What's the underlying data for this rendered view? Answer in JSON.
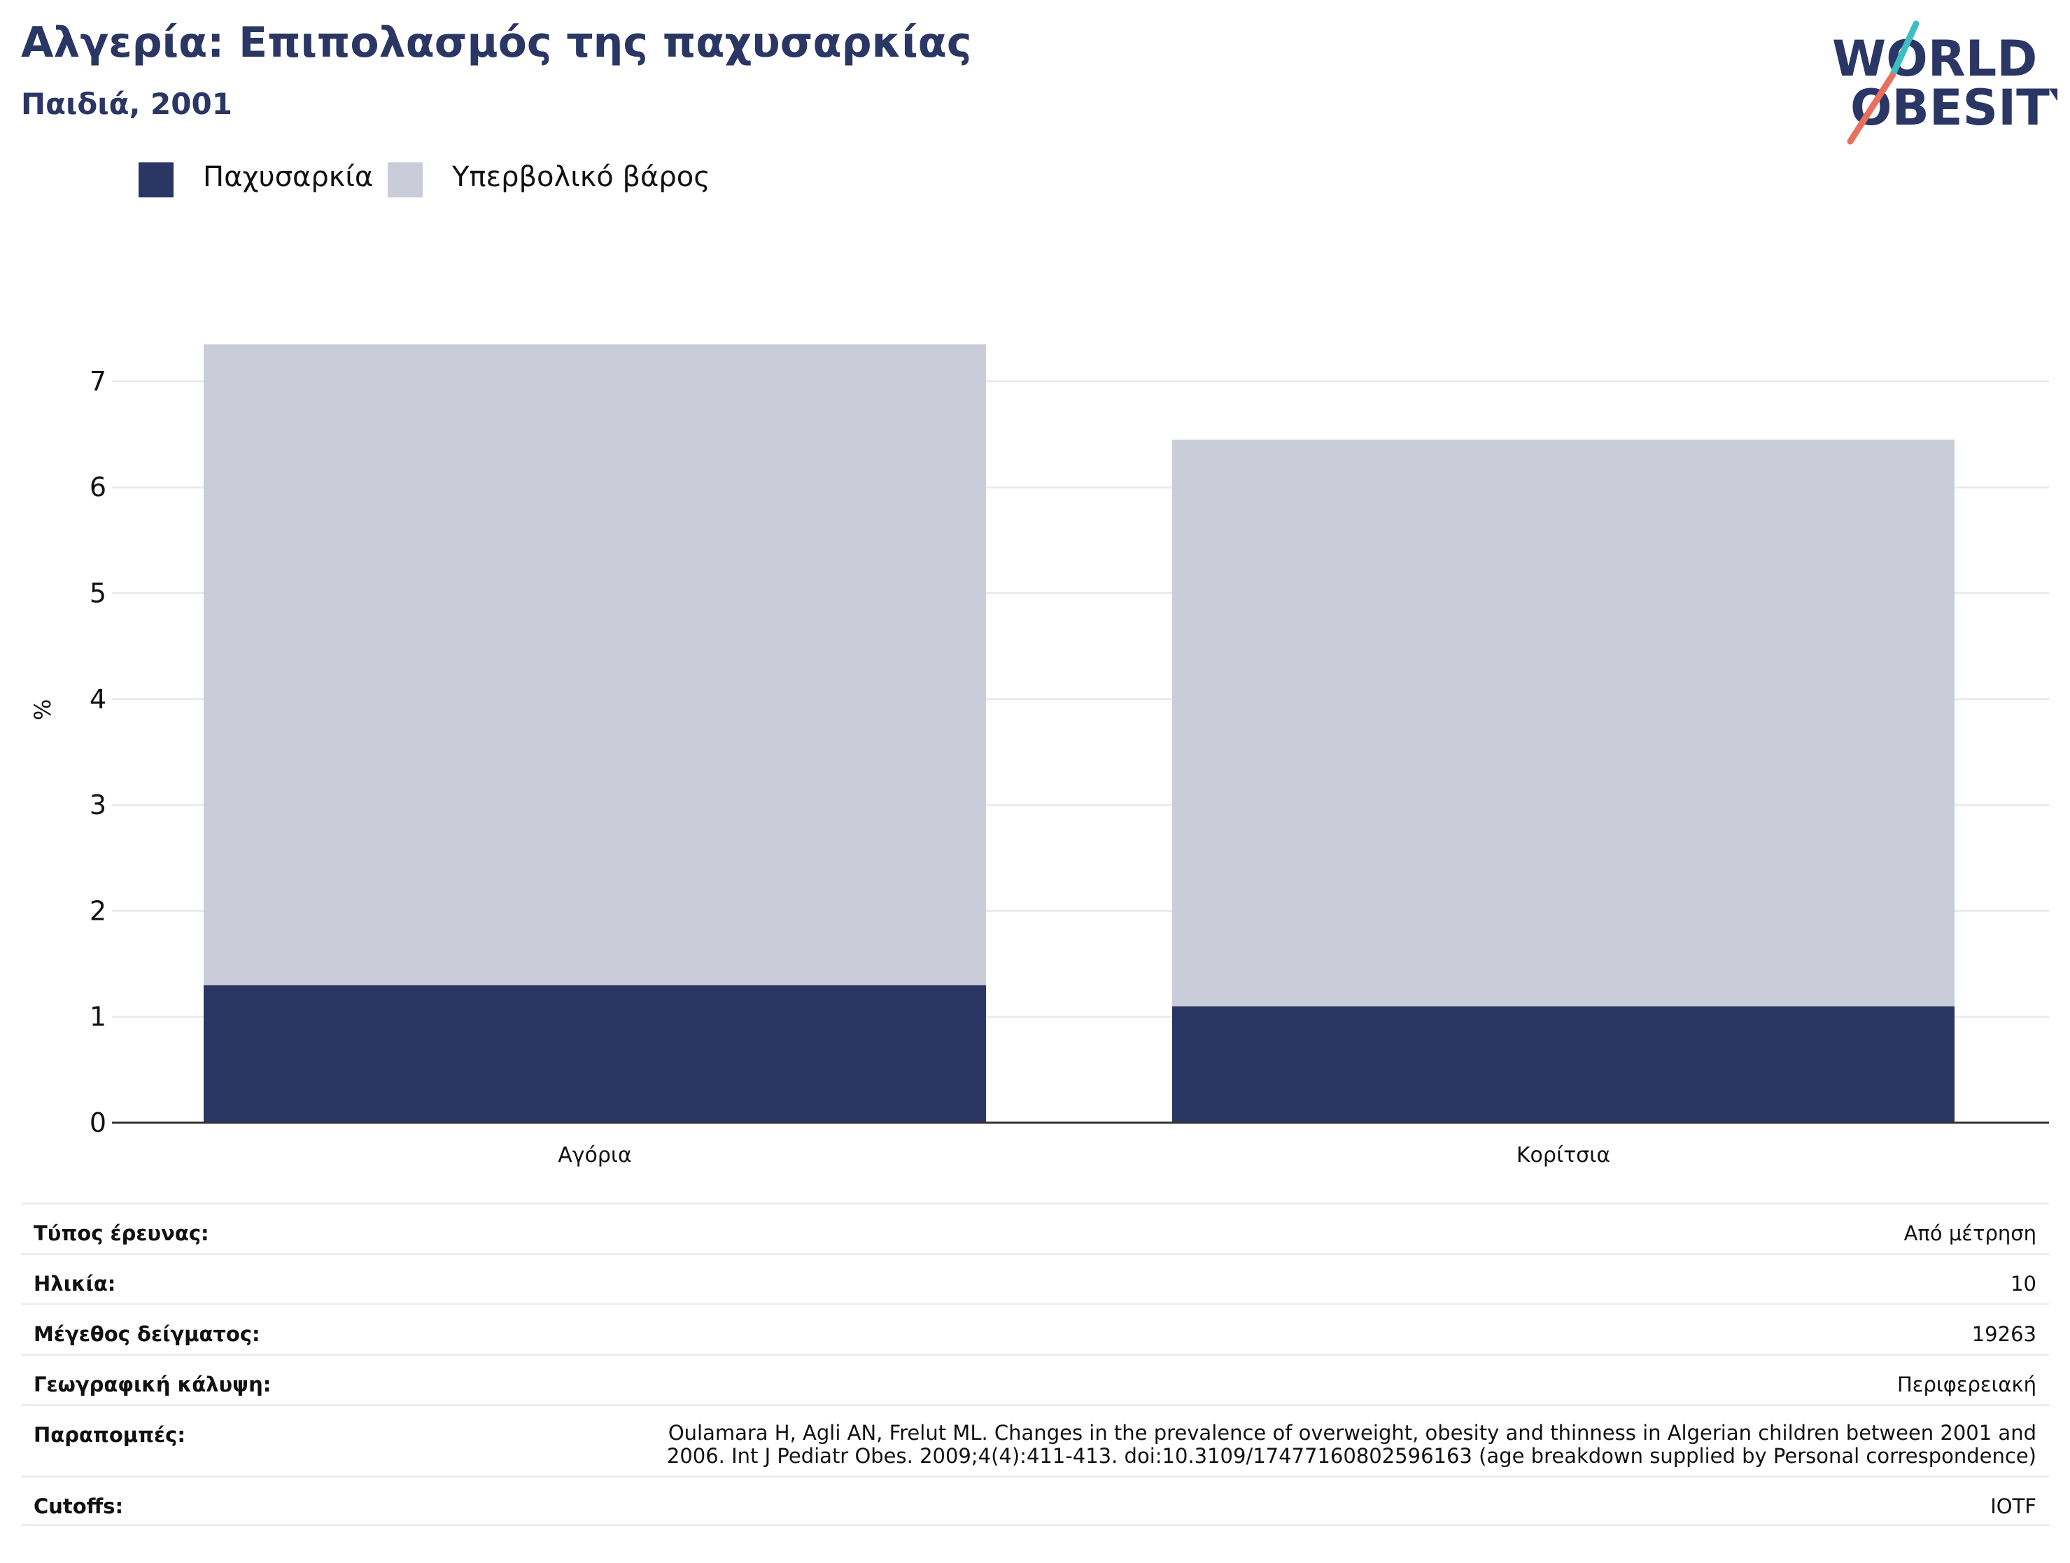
{
  "header": {
    "title": "Αλγερία: Επιπολασμός της παχυσαρκίας",
    "subtitle": "Παιδιά, 2001"
  },
  "logo": {
    "line1": "WORLD",
    "line2": "OBESITY",
    "colors": {
      "text": "#2a3663",
      "stroke_teal": "#3bbfc4",
      "stroke_coral": "#e8705f"
    }
  },
  "legend": {
    "items": [
      {
        "label": "Παχυσαρκία",
        "color": "#2a3663"
      },
      {
        "label": "Υπερβολικό βάρος",
        "color": "#cacdd9"
      }
    ]
  },
  "chart_data": {
    "type": "bar",
    "stacked": true,
    "categories": [
      "Αγόρια",
      "Κορίτσια"
    ],
    "series": [
      {
        "name": "Παχυσαρκία",
        "values": [
          1.3,
          1.1
        ],
        "color": "#2a3663"
      },
      {
        "name": "Υπερβολικό βάρος",
        "values": [
          6.05,
          5.35
        ],
        "color": "#cacdd9"
      }
    ],
    "ylabel": "%",
    "ylim": [
      0,
      7.5
    ],
    "yticks": [
      "0",
      "1",
      "2",
      "3",
      "4",
      "5",
      "6",
      "7"
    ],
    "grid": true,
    "legend_position": "top-left"
  },
  "meta": {
    "rows": [
      {
        "label": "Τύπος έρευνας:",
        "value": "Από μέτρηση"
      },
      {
        "label": "Ηλικία:",
        "value": "10"
      },
      {
        "label": "Μέγεθος δείγματος:",
        "value": "19263"
      },
      {
        "label": "Γεωγραφική κάλυψη:",
        "value": "Περιφερειακή"
      },
      {
        "label": "Παραπομπές:",
        "value": "Oulamara H, Agli AN, Frelut ML. Changes in the prevalence of overweight, obesity and thinness in Algerian children between 2001 and 2006. Int J Pediatr Obes. 2009;4(4):411-413. doi:10.3109/17477160802596163 (age breakdown supplied by Personal correspondence)"
      },
      {
        "label": "Cutoffs:",
        "value": "IOTF"
      }
    ]
  }
}
